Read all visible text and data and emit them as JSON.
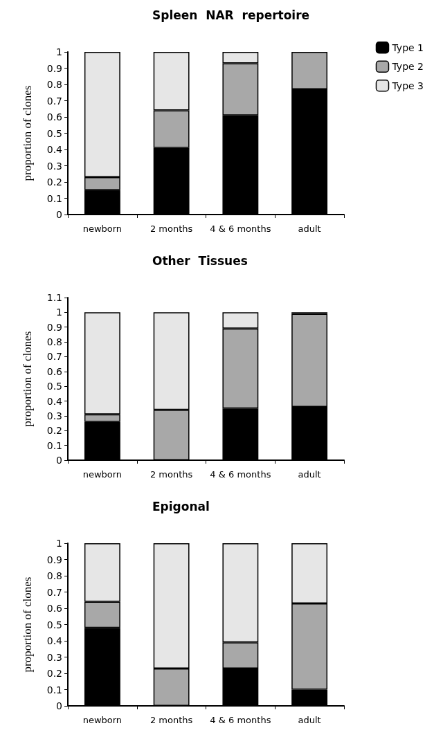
{
  "chart_data": [
    {
      "type": "bar",
      "title": "Spleen  NAR  repertoire",
      "ylabel": "proportion of clones",
      "categories": [
        "newborn",
        "2 months",
        "4 & 6 months",
        "adult"
      ],
      "stacked": true,
      "legend": "top right",
      "grid": false,
      "ylim": [
        0,
        1
      ],
      "yticks": [
        0,
        0.1,
        0.2,
        0.3,
        0.4,
        0.5,
        0.6,
        0.7,
        0.8,
        0.9,
        1
      ],
      "series": [
        {
          "name": "Type 1",
          "color": "#000000",
          "values": [
            0.15,
            0.41,
            0.61,
            0.77
          ]
        },
        {
          "name": "Type 2",
          "color": "#a8a8a8",
          "values": [
            0.08,
            0.23,
            0.32,
            0.23
          ]
        },
        {
          "name": "Type 3",
          "color": "#e6e6e6",
          "values": [
            0.77,
            0.36,
            0.07,
            0
          ]
        }
      ]
    },
    {
      "type": "bar",
      "title": "Other  Tissues",
      "ylabel": "proportion of clones",
      "categories": [
        "newborn",
        "2 months",
        "4 & 6 months",
        "adult"
      ],
      "stacked": true,
      "legend": false,
      "grid": false,
      "ylim": [
        0,
        1.1
      ],
      "yticks": [
        0,
        0.1,
        0.2,
        0.3,
        0.4,
        0.5,
        0.6,
        0.7,
        0.8,
        0.9,
        1,
        1.1
      ],
      "series": [
        {
          "color": "#000000",
          "values": [
            0.26,
            0,
            0.35,
            0.36
          ]
        },
        {
          "color": "#a8a8a8",
          "values": [
            0.05,
            0.34,
            0.54,
            0.63
          ]
        },
        {
          "color": "#e6e6e6",
          "values": [
            0.69,
            0.66,
            0.11,
            0.01
          ]
        }
      ]
    },
    {
      "type": "bar",
      "title": "Epigonal",
      "ylabel": "proportion of clones",
      "categories": [
        "newborn",
        "2 months",
        "4 & 6 months",
        "adult"
      ],
      "stacked": true,
      "legend": false,
      "grid": false,
      "ylim": [
        0,
        1
      ],
      "yticks": [
        0,
        0.1,
        0.2,
        0.3,
        0.4,
        0.5,
        0.6,
        0.7,
        0.8,
        0.9,
        1
      ],
      "series": [
        {
          "color": "#000000",
          "values": [
            0.48,
            0,
            0.23,
            0.1
          ]
        },
        {
          "color": "#a8a8a8",
          "values": [
            0.16,
            0.23,
            0.16,
            0.53
          ]
        },
        {
          "color": "#e6e6e6",
          "values": [
            0.36,
            0.77,
            0.61,
            0.37
          ]
        }
      ]
    }
  ]
}
